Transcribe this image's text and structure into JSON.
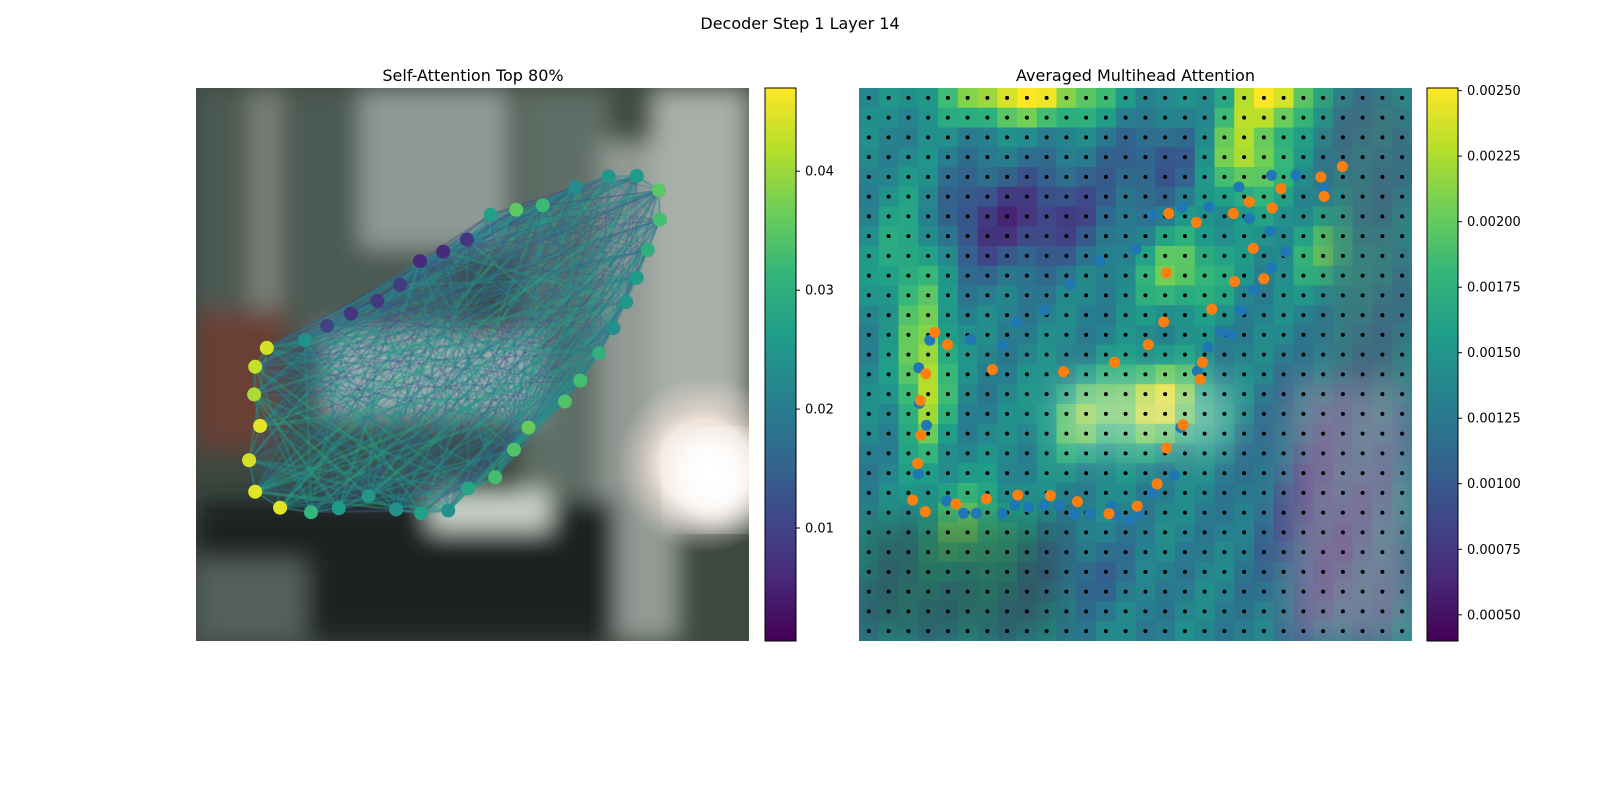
{
  "figure": {
    "suptitle": "Decoder Step 1 Layer 14"
  },
  "colors": {
    "viridis": [
      "#440154",
      "#482878",
      "#3e4989",
      "#31688e",
      "#26828e",
      "#1f9e89",
      "#35b779",
      "#6ece58",
      "#b5de2b",
      "#fde725"
    ],
    "points_blue": "#1f77b4",
    "points_orange": "#ff7f0e",
    "grid_dots": "#000000"
  },
  "chart_data": [
    {
      "type": "scatter",
      "title": "Self-Attention Top 80%",
      "background": "blurred camera image (dark interior, window frame, bright reflection on right)",
      "colorbar": {
        "ticks": [
          0.01,
          0.02,
          0.03,
          0.04
        ],
        "tick_labels": [
          "0.01",
          "0.02",
          "0.03",
          "0.04"
        ],
        "range": [
          0.0005,
          0.047
        ],
        "cmap": "viridis"
      },
      "xlim": [
        0,
        100
      ],
      "ylim": [
        0,
        100
      ],
      "points": [
        {
          "x": 79.7,
          "y": 84.1,
          "v": 0.026
        },
        {
          "x": 74.6,
          "y": 84.0,
          "v": 0.025
        },
        {
          "x": 68.6,
          "y": 82.1,
          "v": 0.023
        },
        {
          "x": 62.7,
          "y": 78.8,
          "v": 0.032
        },
        {
          "x": 57.9,
          "y": 78.0,
          "v": 0.035
        },
        {
          "x": 53.3,
          "y": 77.1,
          "v": 0.027
        },
        {
          "x": 49.0,
          "y": 72.6,
          "v": 0.008
        },
        {
          "x": 44.7,
          "y": 70.4,
          "v": 0.006
        },
        {
          "x": 40.5,
          "y": 68.7,
          "v": 0.006
        },
        {
          "x": 36.9,
          "y": 64.4,
          "v": 0.009
        },
        {
          "x": 32.8,
          "y": 61.5,
          "v": 0.008
        },
        {
          "x": 28.0,
          "y": 59.2,
          "v": 0.008
        },
        {
          "x": 23.7,
          "y": 57.0,
          "v": 0.01
        },
        {
          "x": 19.7,
          "y": 54.4,
          "v": 0.024
        },
        {
          "x": 12.8,
          "y": 53.0,
          "v": 0.044
        },
        {
          "x": 10.7,
          "y": 49.6,
          "v": 0.043
        },
        {
          "x": 10.5,
          "y": 44.6,
          "v": 0.041
        },
        {
          "x": 11.6,
          "y": 38.9,
          "v": 0.045
        },
        {
          "x": 9.6,
          "y": 32.7,
          "v": 0.044
        },
        {
          "x": 10.7,
          "y": 27.0,
          "v": 0.045
        },
        {
          "x": 15.2,
          "y": 24.1,
          "v": 0.045
        },
        {
          "x": 20.8,
          "y": 23.3,
          "v": 0.031
        },
        {
          "x": 25.8,
          "y": 24.0,
          "v": 0.026
        },
        {
          "x": 31.2,
          "y": 26.2,
          "v": 0.025
        },
        {
          "x": 36.2,
          "y": 23.8,
          "v": 0.024
        },
        {
          "x": 40.7,
          "y": 23.1,
          "v": 0.027
        },
        {
          "x": 45.6,
          "y": 23.6,
          "v": 0.024
        },
        {
          "x": 49.2,
          "y": 27.6,
          "v": 0.028
        },
        {
          "x": 54.1,
          "y": 29.6,
          "v": 0.033
        },
        {
          "x": 57.5,
          "y": 34.6,
          "v": 0.034
        },
        {
          "x": 60.1,
          "y": 38.6,
          "v": 0.036
        },
        {
          "x": 66.7,
          "y": 43.3,
          "v": 0.034
        },
        {
          "x": 69.5,
          "y": 47.1,
          "v": 0.033
        },
        {
          "x": 72.9,
          "y": 52.0,
          "v": 0.03
        },
        {
          "x": 75.5,
          "y": 56.6,
          "v": 0.024
        },
        {
          "x": 77.8,
          "y": 61.3,
          "v": 0.025
        },
        {
          "x": 79.7,
          "y": 65.7,
          "v": 0.026
        },
        {
          "x": 81.7,
          "y": 70.7,
          "v": 0.03
        },
        {
          "x": 83.9,
          "y": 76.2,
          "v": 0.033
        },
        {
          "x": 83.7,
          "y": 81.5,
          "v": 0.035
        }
      ]
    },
    {
      "type": "heatmap",
      "title": "Averaged Multihead Attention",
      "grid_size": [
        28,
        28
      ],
      "colorbar": {
        "ticks": [
          0.0005,
          0.00075,
          0.001,
          0.00125,
          0.0015,
          0.00175,
          0.002,
          0.00225,
          0.0025
        ],
        "tick_labels": [
          "0.00050",
          "0.00075",
          "0.00100",
          "0.00125",
          "0.00150",
          "0.00175",
          "0.00200",
          "0.00225",
          "0.00250"
        ],
        "range": [
          0.0004,
          0.00251
        ],
        "cmap": "viridis"
      },
      "hot_spots": [
        {
          "cx": 0.3,
          "cy": 0.02,
          "sx": 0.1,
          "sy": 0.03,
          "a": 1.0
        },
        {
          "cx": 0.75,
          "cy": 0.02,
          "sx": 0.05,
          "sy": 0.03,
          "a": 0.95
        },
        {
          "cx": 0.7,
          "cy": 0.12,
          "sx": 0.05,
          "sy": 0.06,
          "a": 0.85
        },
        {
          "cx": 0.58,
          "cy": 0.33,
          "sx": 0.06,
          "sy": 0.05,
          "a": 0.6
        },
        {
          "cx": 0.54,
          "cy": 0.57,
          "sx": 0.06,
          "sy": 0.05,
          "a": 0.95
        },
        {
          "cx": 0.12,
          "cy": 0.53,
          "sx": 0.03,
          "sy": 0.09,
          "a": 0.85
        },
        {
          "cx": 0.4,
          "cy": 0.6,
          "sx": 0.05,
          "sy": 0.05,
          "a": 0.55
        },
        {
          "cx": 0.2,
          "cy": 0.8,
          "sx": 0.06,
          "sy": 0.06,
          "a": 0.55
        },
        {
          "cx": 0.85,
          "cy": 0.3,
          "sx": 0.05,
          "sy": 0.05,
          "a": 0.5
        },
        {
          "cx": 0.1,
          "cy": 0.3,
          "sx": 0.05,
          "sy": 0.1,
          "a": 0.45
        }
      ],
      "cold_spots": [
        {
          "cx": 0.35,
          "cy": 0.23,
          "sx": 0.09,
          "sy": 0.06,
          "a": 0.8
        },
        {
          "cx": 0.2,
          "cy": 0.25,
          "sx": 0.08,
          "sy": 0.07,
          "a": 0.7
        },
        {
          "cx": 0.55,
          "cy": 0.13,
          "sx": 0.07,
          "sy": 0.05,
          "a": 0.6
        },
        {
          "cx": 0.82,
          "cy": 0.78,
          "sx": 0.08,
          "sy": 0.15,
          "a": 0.6
        },
        {
          "cx": 0.4,
          "cy": 0.88,
          "sx": 0.08,
          "sy": 0.05,
          "a": 0.4
        }
      ],
      "series": [
        {
          "name": "",
          "color": "#1f77b4",
          "points": [
            [
              74.6,
              84.2
            ],
            [
              79.0,
              84.2
            ],
            [
              84.0,
              81.8
            ],
            [
              74.3,
              74.1
            ],
            [
              77.2,
              70.4
            ],
            [
              74.6,
              67.5
            ],
            [
              71.3,
              63.5
            ],
            [
              69.1,
              59.8
            ],
            [
              65.5,
              55.8
            ],
            [
              63.1,
              53.1
            ],
            [
              61.2,
              48.8
            ],
            [
              58.2,
              38.6
            ],
            [
              57.0,
              29.9
            ],
            [
              53.1,
              26.8
            ],
            [
              50.7,
              23.3
            ],
            [
              48.9,
              21.8
            ],
            [
              46.4,
              22.6
            ],
            [
              45.6,
              24.5
            ],
            [
              41.8,
              23.0
            ],
            [
              38.9,
              22.9
            ],
            [
              36.2,
              24.5
            ],
            [
              33.4,
              24.6
            ],
            [
              30.7,
              24.2
            ],
            [
              28.2,
              24.5
            ],
            [
              25.9,
              23.0
            ],
            [
              21.2,
              23.1
            ],
            [
              18.9,
              23.1
            ],
            [
              15.8,
              25.3
            ],
            [
              10.7,
              30.2
            ],
            [
              12.2,
              39.0
            ],
            [
              10.9,
              43.0
            ],
            [
              10.8,
              49.4
            ],
            [
              12.8,
              54.4
            ],
            [
              20.2,
              54.5
            ],
            [
              25.9,
              53.6
            ],
            [
              28.4,
              57.6
            ],
            [
              33.6,
              59.9
            ],
            [
              38.1,
              64.5
            ],
            [
              43.5,
              68.7
            ],
            [
              50.1,
              70.9
            ],
            [
              53.1,
              77.1
            ],
            [
              58.4,
              78.4
            ],
            [
              63.3,
              78.5
            ],
            [
              68.7,
              82.1
            ],
            [
              70.6,
              76.4
            ],
            [
              67.3,
              55.4
            ]
          ]
        },
        {
          "name": "",
          "color": "#ff7f0e",
          "points": [
            [
              87.4,
              85.8
            ],
            [
              83.5,
              83.9
            ],
            [
              84.1,
              80.4
            ],
            [
              76.3,
              81.8
            ],
            [
              74.7,
              78.3
            ],
            [
              70.6,
              79.4
            ],
            [
              67.7,
              77.3
            ],
            [
              61.0,
              75.7
            ],
            [
              56.0,
              77.3
            ],
            [
              55.6,
              66.6
            ],
            [
              55.1,
              57.7
            ],
            [
              52.3,
              53.6
            ],
            [
              46.2,
              50.4
            ],
            [
              37.0,
              48.7
            ],
            [
              24.1,
              49.1
            ],
            [
              13.7,
              55.8
            ],
            [
              16.0,
              53.6
            ],
            [
              12.1,
              48.3
            ],
            [
              11.1,
              43.5
            ],
            [
              11.2,
              37.2
            ],
            [
              10.6,
              32.1
            ],
            [
              9.7,
              25.5
            ],
            [
              12.0,
              23.4
            ],
            [
              17.5,
              24.8
            ],
            [
              23.0,
              25.7
            ],
            [
              28.7,
              26.4
            ],
            [
              34.6,
              26.3
            ],
            [
              39.5,
              25.2
            ],
            [
              45.2,
              23.0
            ],
            [
              50.3,
              24.4
            ],
            [
              53.9,
              28.4
            ],
            [
              55.6,
              34.9
            ],
            [
              58.6,
              39.1
            ],
            [
              61.7,
              47.3
            ],
            [
              62.1,
              50.4
            ],
            [
              63.8,
              60.0
            ],
            [
              67.9,
              65.0
            ],
            [
              71.3,
              71.0
            ],
            [
              73.2,
              65.5
            ]
          ]
        }
      ]
    }
  ]
}
